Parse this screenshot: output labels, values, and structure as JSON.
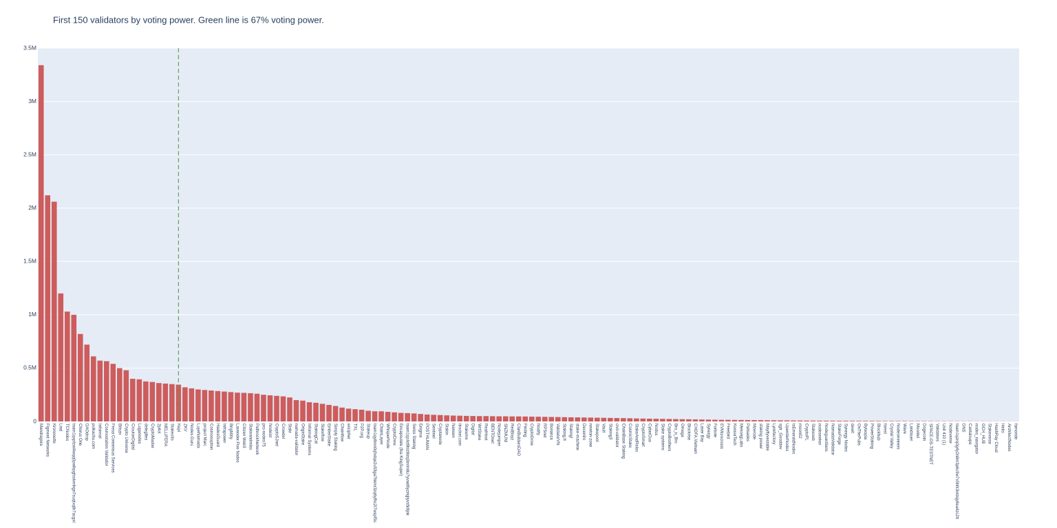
{
  "chart_data": {
    "type": "bar",
    "title": "First 150 validators by voting power. Green line is 67% voting power.",
    "color": "#cd5c5c",
    "vline_color": "#5fa55a",
    "vline_category_index": 21,
    "grid": true,
    "ylim": [
      0,
      3500000
    ],
    "yticks": [
      0,
      {
        "value": 500000,
        "label": "0.5M"
      },
      {
        "value": 1000000,
        "label": "1M"
      },
      {
        "value": 1500000,
        "label": "1.5M"
      },
      {
        "value": 2000000,
        "label": "2M"
      },
      {
        "value": 2500000,
        "label": "2.5M"
      },
      {
        "value": 3000000,
        "label": "3M"
      },
      {
        "value": 3500000,
        "label": "3.5M"
      }
    ],
    "categories": [
      "Mandragora",
      "Figment Networks",
      "Kronosette",
      "Lind",
      "TCNodes",
      "tnam1qxpfzwl4wqq0pwlkpgfsslvmhgn7suqtxq8r7acgxt",
      "Chorus One",
      "DAOdrop",
      "polkachu.com",
      "Informal",
      "Cosmostation Validator",
      "Fresa Consensus Services",
      "Bitszn",
      "Crypto Universe",
      "CroutonDigital",
      "Luganodes",
      "deleg8es",
      "CryptoMaster",
      "2pilot",
      "MELLIFERA",
      "Stakecito",
      "Kepl",
      "ZKV",
      "Nodes.Guru",
      "LuyeNamada",
      "project Marc",
      "Cosmosoption",
      "HadesGuard",
      "Infrapower",
      "Brightlity",
      "Lavender.Five Nodes",
      "Citizen Web3",
      "Stakeandrelax",
      "PathrockNetwork",
      "pro-nodes75",
      "Nodeist",
      "CryptoSJnet",
      "Crowdel",
      "Stakr",
      "namada-validator",
      "OriginStake",
      "Informal Systems",
      "StakingCat",
      "Stakeflow",
      "EmberStake",
      "Simply Staking",
      "Chainflow",
      "encipher",
      "TXL",
      "P2P.org",
      "Stakeup",
      "tnam1qy8mn0qfxdqe2u53ga7hkmr3zq6yfhc2t7wspf5s",
      "ChainLayer",
      "WhisperNode",
      "CryptoCrew",
      "Encapsulate (fka KingSuper)",
      "tnam1qz4d9hlz8stq3mlm8u7yvwd6yzrkjjlyvs5r8jnk",
      "Swiss Staking",
      "Enigma",
      "POSTHUMAN",
      "Sentinel",
      "Cryptanode",
      "Stakin",
      "Nansen",
      "itrocket.com",
      "Stakeme",
      "Digital",
      "WrtStake",
      "RealHost",
      "BENTOnet",
      "Nodejumper",
      "SNZMUNI",
      "RedBoyz",
      "ClanBuildersDAO",
      "Finding",
      "CryptoGrow",
      "Nodify",
      "RPSnet",
      "Bonanza",
      "ValidatorVN",
      "Staking.fr",
      "Staking!",
      "stake-machine",
      "Decentro",
      "newton-zone",
      "Stakepool",
      "Vault",
      "Staking3",
      "civil-validator",
      "ChainBase Staking",
      "CosmicStake",
      "StakeAndRelax",
      "CryptoSmart",
      "CyberDuo",
      "Nodus",
      "Stake systems",
      "CryptoBrothers",
      "Bro_n_Bro",
      "Omega",
      "Blockrise",
      "CHOFA.Vietnam",
      "Laser Bay",
      "Synergy",
      "Forbole",
      "EVMcrocrosis",
      "Freebird",
      "KonsorTech",
      "MekongLabs",
      "Palisades",
      "Mzerode",
      "staking power",
      "Mayflyvestable",
      "Lynkfactory",
      "sgtr_Gooddev",
      "UpenderNodes",
      "tsEmeraldNodes",
      "moon02",
      "CryptoPL",
      "Stakeseb",
      "nodeseeker",
      "Nodeguardians",
      "NamadaValidator",
      "StakeForge",
      "Synergy Nodes",
      "dewit",
      "OnThePubs",
      "Byteopia",
      "PowerStaking",
      "Blockhub",
      "forest",
      "Crystal Valley",
      "Nodeomnners",
      "Wave",
      "Landauer",
      "Moonlet",
      "Dogecoin",
      "SPACE-OS-TESTNET",
      "Validators",
      "Unit 410 (1)",
      "Nodeverse",
      "tnam1qzrq0g4y2n8m3p6c9w7x5hfk3vldsjy8ea4zc2tt",
      "DNS",
      "Cantaloupe",
      "nodes_navigator",
      "GCH_HUB",
      "Stakeverse",
      "HashRay Cloud",
      "Helio",
      "ArchitectNodes",
      "famoride"
    ],
    "values": [
      3340000,
      2120000,
      2060000,
      1200000,
      1030000,
      1000000,
      820000,
      720000,
      610000,
      570000,
      565000,
      540000,
      500000,
      480000,
      400000,
      395000,
      375000,
      370000,
      360000,
      355000,
      350000,
      345000,
      320000,
      310000,
      300000,
      295000,
      290000,
      285000,
      280000,
      275000,
      270000,
      268000,
      265000,
      260000,
      250000,
      245000,
      240000,
      235000,
      225000,
      200000,
      195000,
      180000,
      175000,
      165000,
      155000,
      145000,
      130000,
      120000,
      115000,
      110000,
      100000,
      95000,
      95000,
      90000,
      85000,
      80000,
      78000,
      75000,
      70000,
      65000,
      62000,
      60000,
      57000,
      55000,
      54000,
      52000,
      51000,
      50000,
      50000,
      49000,
      48000,
      48000,
      47000,
      47000,
      46000,
      45000,
      44000,
      43000,
      42000,
      41000,
      40000,
      39000,
      38000,
      37000,
      36000,
      35000,
      34000,
      33000,
      32000,
      31000,
      30000,
      28000,
      27000,
      26000,
      25000,
      24000,
      23000,
      22000,
      21000,
      20000,
      19000,
      18000,
      17000,
      16000,
      15000,
      14500,
      14000,
      13500,
      13000,
      12500,
      12000,
      11000,
      10500,
      10000,
      9500,
      9000,
      8500,
      8000,
      7500,
      7000,
      6800,
      6500,
      6200,
      6000,
      5700,
      5400,
      5100,
      4800,
      4500,
      4200,
      4000,
      3800,
      3600,
      3400,
      3200,
      3000,
      2800,
      2600,
      2400,
      2200,
      2000,
      1900,
      1800,
      1700,
      1600,
      1500,
      1400,
      1300,
      1200,
      1000
    ]
  }
}
